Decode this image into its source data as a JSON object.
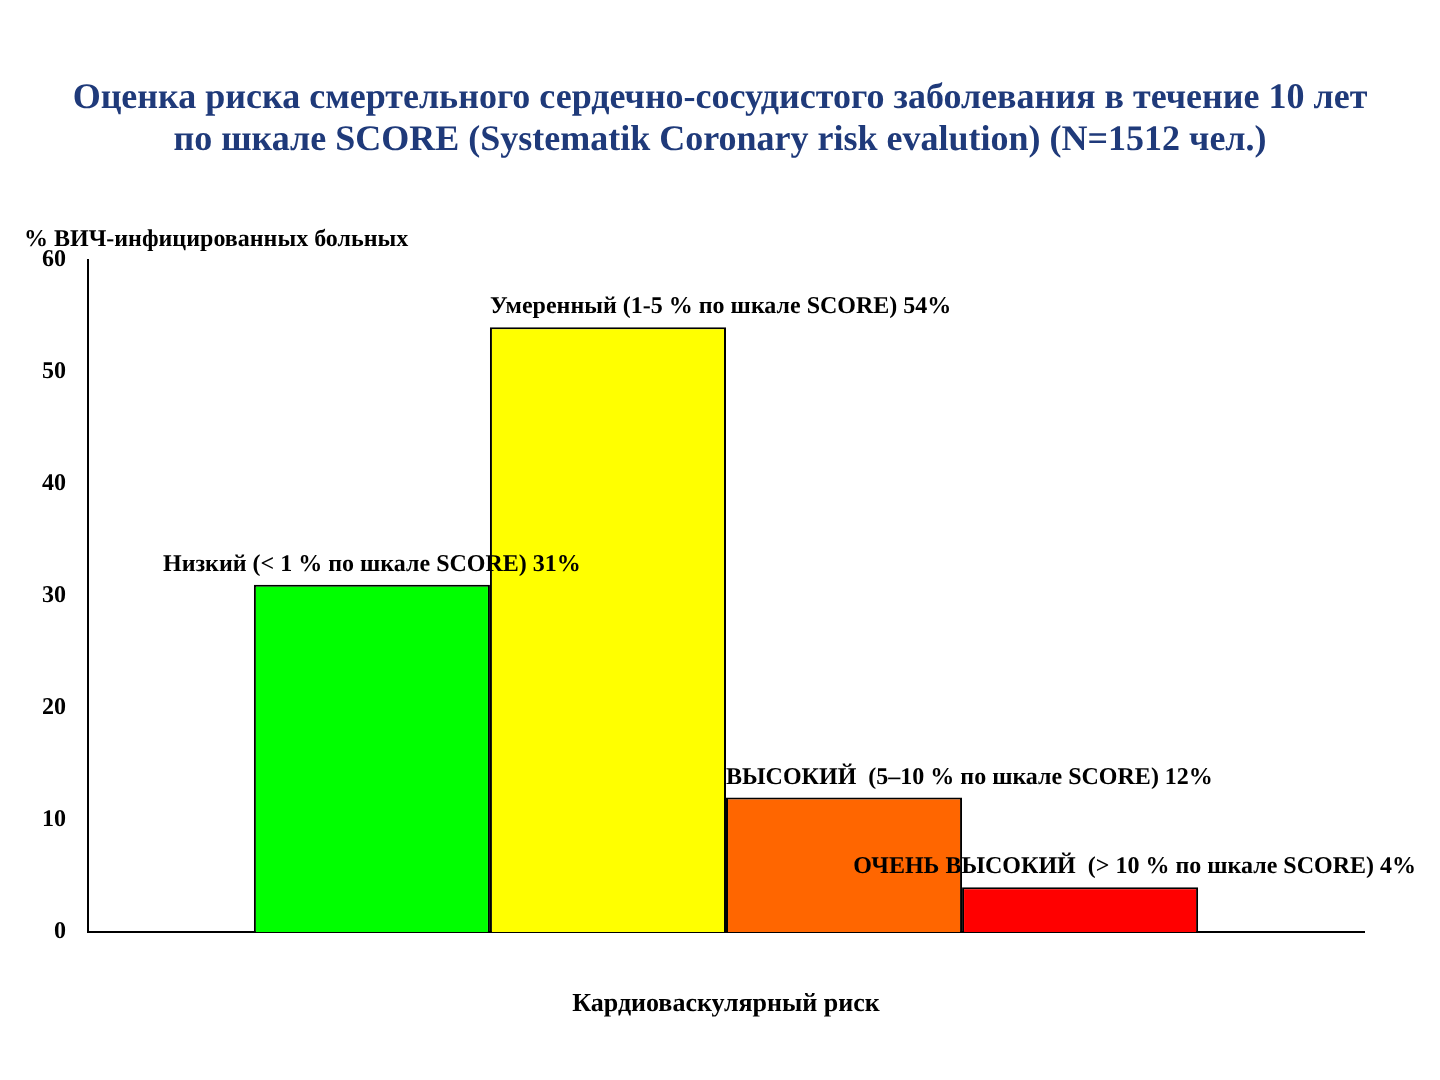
{
  "chart_data": {
    "type": "bar",
    "title": "Оценка риска смертельного сердечно-сосудистого заболевания в течение 10 лет по шкале SCORE (Systematik Coronary risk evalution) (N=1512 чел.)",
    "xlabel": "Кардиоваскулярный риск",
    "ylabel": "% ВИЧ-инфицированных больных",
    "categories": [
      null
    ],
    "series": [
      {
        "name": "Низкий (< 1 % по шкале SCORE) 31%",
        "color": "#00ff00",
        "values": [
          31
        ]
      },
      {
        "name": "Умеренный (1-5 % по шкале SCORE) 54%",
        "color": "#ffff00",
        "values": [
          54
        ]
      },
      {
        "name": "ВЫСОКИЙ  (5–10 % по шкале SCORE) 12%",
        "color": "#ff6600",
        "values": [
          12
        ]
      },
      {
        "name": "ОЧЕНЬ ВЫСОКИЙ  (> 10 % по шкале SCORE) 4%",
        "color": "#ff0000",
        "values": [
          4
        ]
      }
    ],
    "ylim": [
      0,
      60
    ],
    "yticks": [
      0,
      10,
      20,
      30,
      40,
      50,
      60
    ],
    "grid": false,
    "legend": false
  }
}
